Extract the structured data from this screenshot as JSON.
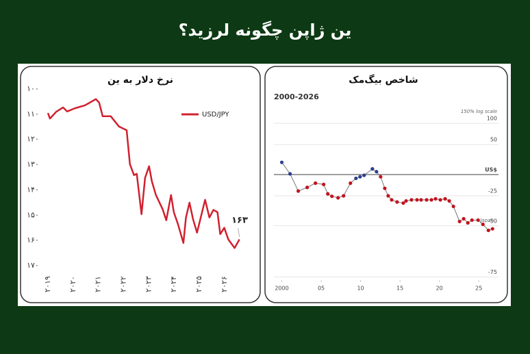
{
  "title": "ین ژاپن چگونه لرزید؟",
  "chart_data": [
    {
      "type": "line",
      "title": "نرخ دلار به ین",
      "annotation": "۱۶۳",
      "y_inverted": true,
      "xlim": [
        2019,
        2026.6
      ],
      "xticks": [
        {
          "value": 2019,
          "label": "۲۰۱۹"
        },
        {
          "value": 2020,
          "label": "۲۰۲۰"
        },
        {
          "value": 2021,
          "label": "۲۰۲۱"
        },
        {
          "value": 2022,
          "label": "۲۰۲۲"
        },
        {
          "value": 2023,
          "label": "۲۰۲۳"
        },
        {
          "value": 2024,
          "label": "۲۰۲۴"
        },
        {
          "value": 2025,
          "label": "۲۰۲۵"
        },
        {
          "value": 2026,
          "label": "۲۰۲۶"
        }
      ],
      "ylim": [
        100,
        170
      ],
      "yticks": [
        {
          "value": 100,
          "label": "۱۰۰"
        },
        {
          "value": 110,
          "label": "۱۱۰"
        },
        {
          "value": 120,
          "label": "۱۲۰"
        },
        {
          "value": 130,
          "label": "۱۳۰"
        },
        {
          "value": 140,
          "label": "۱۴۰"
        },
        {
          "value": 150,
          "label": "۱۵۰"
        },
        {
          "value": 160,
          "label": "۱۶۰"
        },
        {
          "value": 170,
          "label": "۱۷۰"
        }
      ],
      "x": [
        2019.0,
        2019.08,
        2019.33,
        2019.6,
        2019.76,
        2020.08,
        2020.46,
        2020.9,
        2021.03,
        2021.17,
        2021.49,
        2021.82,
        2022.12,
        2022.25,
        2022.41,
        2022.52,
        2022.71,
        2022.85,
        2023.01,
        2023.12,
        2023.28,
        2023.55,
        2023.69,
        2023.88,
        2023.99,
        2024.15,
        2024.37,
        2024.47,
        2024.61,
        2024.75,
        2024.91,
        2025.23,
        2025.4,
        2025.56,
        2025.72,
        2025.83,
        2025.99,
        2026.15,
        2026.4,
        2026.59
      ],
      "series": [
        {
          "name": "USD/JPY",
          "color": "#d0202e",
          "values": [
            109.5,
            111.7,
            109,
            107.3,
            108.9,
            107.6,
            106.5,
            104,
            105.4,
            110.8,
            110.8,
            114.9,
            116.3,
            129.8,
            134.1,
            133.6,
            149.6,
            135.2,
            130.6,
            136.6,
            142,
            147.7,
            152,
            142,
            148.8,
            153.4,
            161,
            151,
            145,
            151.5,
            156.9,
            143.9,
            150.9,
            147.9,
            148.8,
            157.5,
            155,
            159.6,
            163,
            159.6
          ]
        }
      ]
    },
    {
      "type": "scatter-line",
      "title": "شاخص بیگ‌مک",
      "subtitle": "2000-2026",
      "scale_note": "150% log scale",
      "log_scale": true,
      "xlim": [
        1999,
        2027.5
      ],
      "xticks": [
        2000,
        {
          "value": 2005,
          "label": "05"
        },
        {
          "value": 2010,
          "label": "10"
        },
        {
          "value": 2015,
          "label": "15"
        },
        {
          "value": 2020,
          "label": "20"
        },
        {
          "value": 2025,
          "label": "25"
        }
      ],
      "ylim": [
        -76,
        130
      ],
      "yticks": [
        100,
        50,
        {
          "value": 0,
          "label": "US$"
        },
        -25,
        -50,
        -75
      ],
      "grid": true,
      "x": [
        2000.0,
        2001.05,
        2002.09,
        2003.22,
        2004.27,
        2005.31,
        2005.84,
        2006.36,
        2007.14,
        2007.84,
        2008.71,
        2009.41,
        2009.93,
        2010.45,
        2011.5,
        2012.02,
        2012.54,
        2013.07,
        2013.5,
        2013.94,
        2014.63,
        2015.42,
        2015.77,
        2016.46,
        2017.16,
        2017.68,
        2018.38,
        2018.99,
        2019.51,
        2020.12,
        2020.73,
        2021.25,
        2021.78,
        2022.56,
        2023.08,
        2023.61,
        2024.13,
        2024.91,
        2025.52,
        2026.22,
        2026.74
      ],
      "series": [
        {
          "name": "Japan",
          "color": "#c0141e",
          "line_color": "#777777",
          "values": [
            18,
            1,
            -20,
            -16,
            -11,
            -12.5,
            -23,
            -25.5,
            -27,
            -25,
            -11,
            -5,
            -3,
            -1,
            8,
            4,
            -3,
            -17,
            -25,
            -29,
            -31,
            -32,
            -30,
            -29,
            -29,
            -29,
            -29,
            -29,
            -28,
            -29,
            -28,
            -30,
            -35,
            -47,
            -45,
            -48,
            -46,
            -46,
            -49,
            -53,
            -52
          ],
          "point_colors": [
            "#2c3e8f",
            "#2c3e8f",
            "#c0141e",
            "#c0141e",
            "#c0141e",
            "#c0141e",
            "#c0141e",
            "#c0141e",
            "#c0141e",
            "#c0141e",
            "#c0141e",
            "#2c3e8f",
            "#2c3e8f",
            "#2c3e8f",
            "#2c3e8f",
            "#2c3e8f",
            "#c0141e",
            "#c0141e",
            "#c0141e",
            "#c0141e",
            "#c0141e",
            "#c0141e",
            "#c0141e",
            "#c0141e",
            "#c0141e",
            "#c0141e",
            "#c0141e",
            "#c0141e",
            "#c0141e",
            "#c0141e",
            "#c0141e",
            "#c0141e",
            "#c0141e",
            "#c0141e",
            "#c0141e",
            "#c0141e",
            "#c0141e",
            "#c0141e",
            "#c0141e",
            "#c0141e",
            "#c0141e"
          ]
        }
      ]
    }
  ]
}
